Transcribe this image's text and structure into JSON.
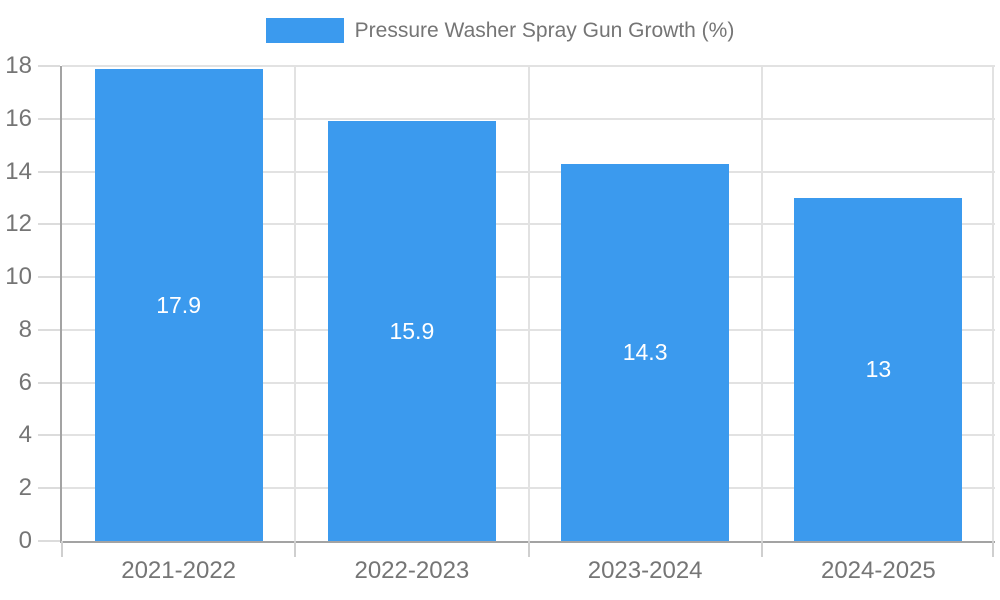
{
  "legend": {
    "label": "Pressure Washer Spray Gun Growth (%)"
  },
  "colors": {
    "bar": "#3b9aee",
    "axis_text": "#757575",
    "grid": "#e2e2e2",
    "axis_line": "#a3a3a3",
    "value_label": "#ffffff"
  },
  "chart_data": {
    "type": "bar",
    "categories": [
      "2021-2022",
      "2022-2023",
      "2023-2024",
      "2024-2025"
    ],
    "series": [
      {
        "name": "Pressure Washer Spray Gun Growth (%)",
        "values": [
          17.9,
          15.9,
          14.3,
          13
        ]
      }
    ],
    "data_labels": [
      "17.9",
      "15.9",
      "14.3",
      "13"
    ],
    "title": "",
    "xlabel": "",
    "ylabel": "",
    "ylim": [
      0,
      18
    ],
    "ytick_step": 2,
    "grid": true,
    "legend_position": "top-center",
    "bar_width_fraction": 0.72
  }
}
